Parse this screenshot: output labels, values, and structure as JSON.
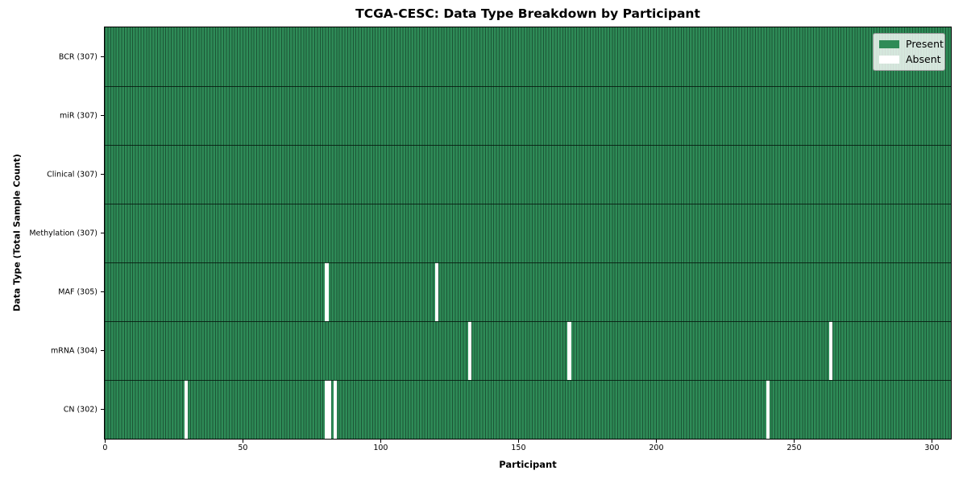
{
  "chart_data": {
    "type": "heatmap",
    "title": "TCGA-CESC: Data Type Breakdown by Participant",
    "xlabel": "Participant",
    "ylabel": "Data Type (Total Sample Count)",
    "n_participants": 307,
    "x_ticks": [
      0,
      50,
      100,
      150,
      200,
      250,
      300
    ],
    "rows": [
      {
        "label": "BCR (307)",
        "data_type": "BCR",
        "present_count": 307,
        "absent_participants": []
      },
      {
        "label": "miR (307)",
        "data_type": "miR",
        "present_count": 307,
        "absent_participants": []
      },
      {
        "label": "Clinical (307)",
        "data_type": "Clinical",
        "present_count": 307,
        "absent_participants": []
      },
      {
        "label": "Methylation (307)",
        "data_type": "Methylation",
        "present_count": 307,
        "absent_participants": []
      },
      {
        "label": "MAF (305)",
        "data_type": "MAF",
        "present_count": 305,
        "absent_participants": [
          80,
          120
        ]
      },
      {
        "label": "mRNA (304)",
        "data_type": "mRNA",
        "present_count": 304,
        "absent_participants": [
          132,
          168,
          263
        ]
      },
      {
        "label": "CN (302)",
        "data_type": "CN",
        "present_count": 302,
        "absent_participants": [
          29,
          80,
          81,
          83,
          240
        ]
      }
    ],
    "legend": [
      {
        "label": "Present",
        "color": "#2e8b57"
      },
      {
        "label": "Absent",
        "color": "#ffffff"
      }
    ],
    "colors": {
      "present": "#2e8b57",
      "absent": "#ffffff",
      "cell_edge": "#1c5536",
      "row_divider": "#05190e",
      "axis_spine": "#000000"
    },
    "legend_position": "upper right",
    "grid": "cell-edges"
  }
}
